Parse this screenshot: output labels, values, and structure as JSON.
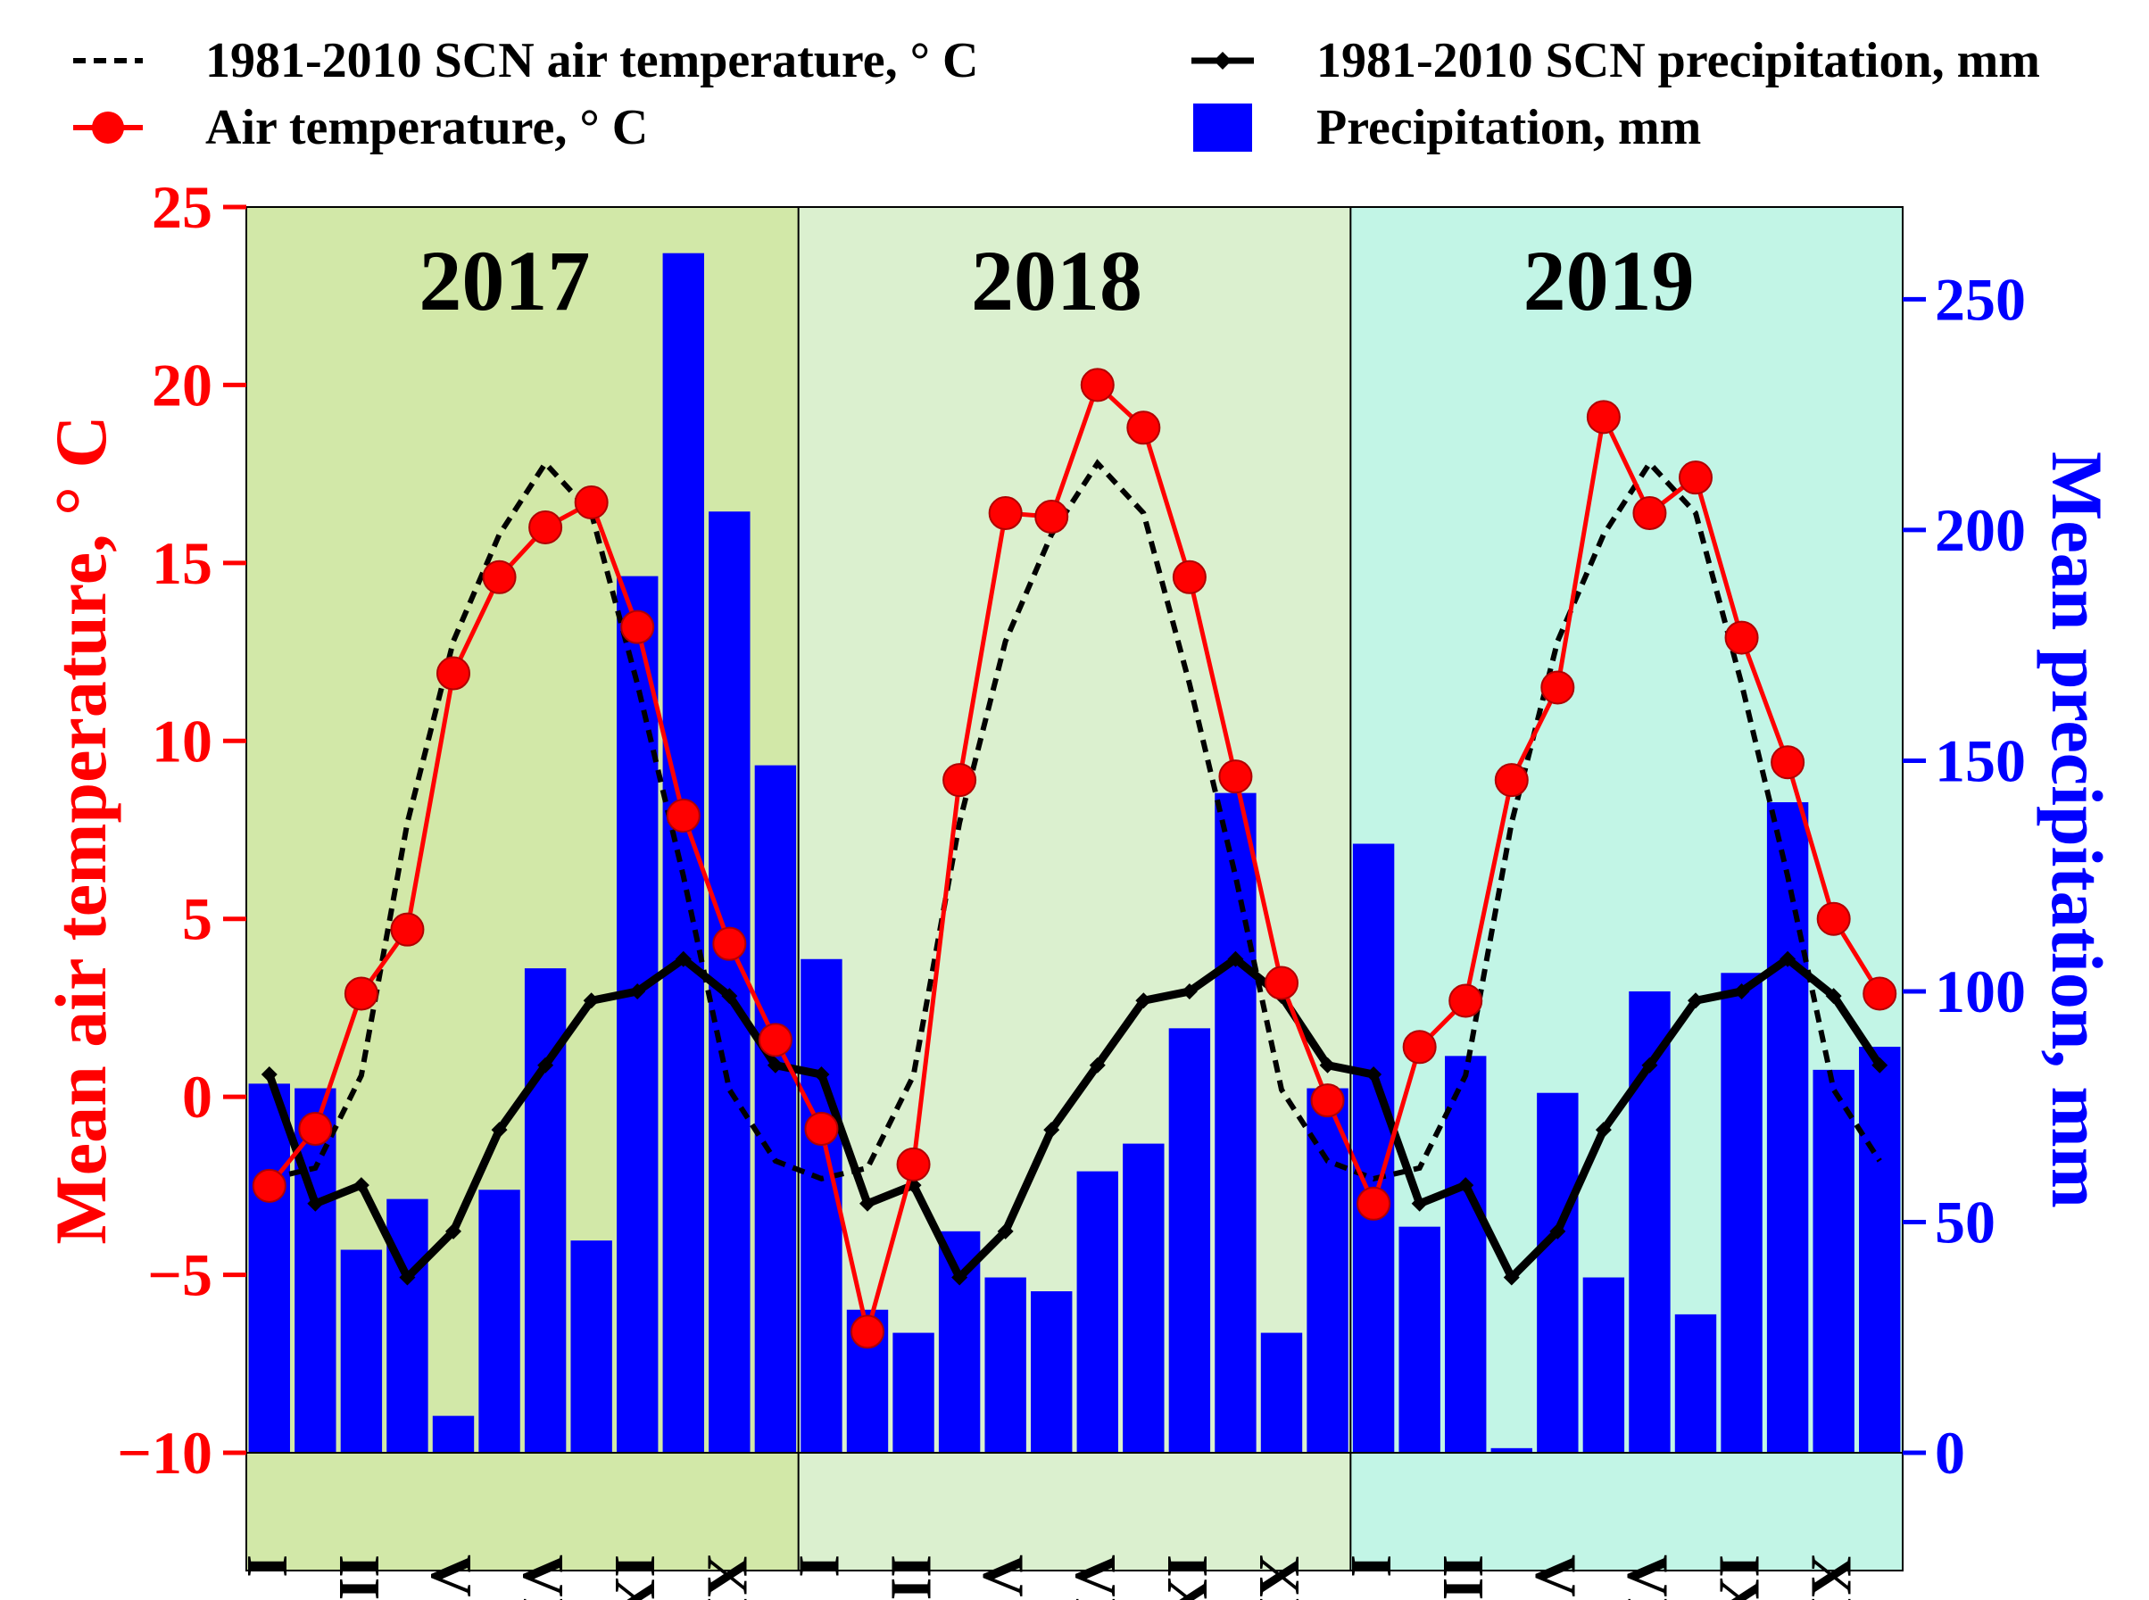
{
  "chart_data": {
    "type": "bar+line",
    "title": "",
    "legend": [
      {
        "label": "1981-2010 SCN air temperature, ° C",
        "symbol": "dashed-line",
        "color": "#000000"
      },
      {
        "label": "1981-2010 SCN precipitation, mm",
        "symbol": "line-diamond",
        "color": "#000000"
      },
      {
        "label": "Air temperature, ° C",
        "symbol": "line-circle",
        "color": "#ff0000"
      },
      {
        "label": "Precipitation, mm",
        "symbol": "bar",
        "color": "#0000ff"
      }
    ],
    "legend_position": "top",
    "years": [
      "2017",
      "2018",
      "2019"
    ],
    "panel_colors": [
      "#d2e8a8",
      "#dbf0cf",
      "#c2f5e6"
    ],
    "month_labels": [
      "I",
      "III",
      "V",
      "VII",
      "IX",
      "XI"
    ],
    "left_axis": {
      "label": "Mean air temperature, ° C",
      "ylim": [
        -10,
        25
      ],
      "ticks": [
        -10,
        -5,
        0,
        5,
        10,
        15,
        20,
        25
      ],
      "tick_labels": [
        "−10",
        "−5",
        "0",
        "5",
        "10",
        "15",
        "20",
        "25"
      ],
      "color": "#ff0000"
    },
    "right_axis": {
      "label": "Mean precipitation, mm",
      "ylim": [
        0,
        270
      ],
      "ticks": [
        0,
        50,
        100,
        150,
        200,
        250
      ],
      "tick_labels": [
        "0",
        "50",
        "100",
        "150",
        "200",
        "250"
      ],
      "color": "#0000ff"
    },
    "series": [
      {
        "name": "Precipitation, mm",
        "axis": "right",
        "kind": "bar",
        "values": [
          80,
          79,
          44,
          55,
          8,
          57,
          105,
          46,
          190,
          260,
          204,
          149,
          107,
          31,
          26,
          48,
          38,
          35,
          61,
          67,
          92,
          143,
          26,
          79,
          132,
          49,
          86,
          1,
          78,
          38,
          100,
          30,
          104,
          141,
          83,
          88
        ]
      },
      {
        "name": "Air temperature, ° C",
        "axis": "left",
        "kind": "line-circle",
        "values": [
          -2.5,
          -0.9,
          2.9,
          4.7,
          11.9,
          14.6,
          16.0,
          16.7,
          13.2,
          7.9,
          4.3,
          1.6,
          -0.9,
          -6.6,
          -1.9,
          8.9,
          16.4,
          16.3,
          20.0,
          18.8,
          14.6,
          9.0,
          3.2,
          -0.1,
          -3.0,
          1.4,
          2.7,
          8.9,
          11.5,
          19.1,
          16.4,
          17.4,
          12.9,
          9.4,
          5.0,
          2.9
        ]
      },
      {
        "name": "1981-2010 SCN air temperature, ° C",
        "axis": "left",
        "kind": "dashed",
        "values": [
          -2.3,
          -2.0,
          0.6,
          7.7,
          12.8,
          15.8,
          17.8,
          16.4,
          11.6,
          6.2,
          0.2,
          -1.8,
          -2.3,
          -2.0,
          0.6,
          7.7,
          12.8,
          15.8,
          17.8,
          16.4,
          11.6,
          6.2,
          0.2,
          -1.8,
          -2.3,
          -2.0,
          0.6,
          7.7,
          12.8,
          15.8,
          17.8,
          16.4,
          11.6,
          6.2,
          0.2,
          -1.8
        ]
      },
      {
        "name": "1981-2010 SCN precipitation, mm",
        "axis": "right",
        "kind": "line-diamond",
        "values": [
          82,
          54,
          58,
          38,
          48,
          70,
          84,
          98,
          100,
          107,
          99,
          84,
          82,
          54,
          58,
          38,
          48,
          70,
          84,
          98,
          100,
          107,
          99,
          84,
          82,
          54,
          58,
          38,
          48,
          70,
          84,
          98,
          100,
          107,
          99,
          84
        ]
      }
    ]
  }
}
